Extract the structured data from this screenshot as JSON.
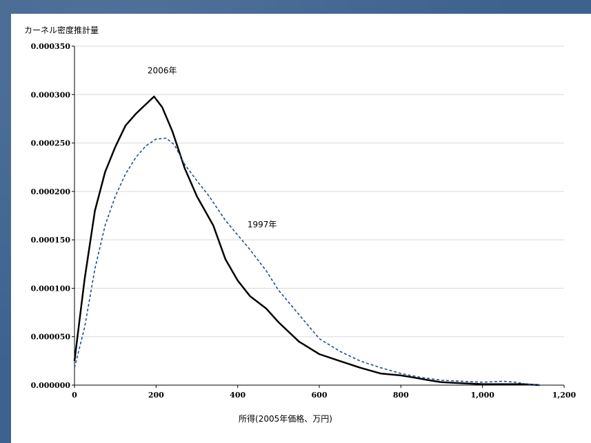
{
  "chart_data": {
    "type": "line",
    "title": "",
    "ylabel": "カーネル密度推計量",
    "xlabel": "所得(2005年価格、万円)",
    "xlim": [
      0,
      1200
    ],
    "ylim": [
      0,
      0.00035
    ],
    "x_ticks": [
      0,
      200,
      400,
      600,
      800,
      1000,
      1200
    ],
    "x_tick_labels": [
      "0",
      "200",
      "400",
      "600",
      "800",
      "1,000",
      "1,200"
    ],
    "y_ticks": [
      0,
      5e-05,
      0.0001,
      0.00015,
      0.0002,
      0.00025,
      0.0003,
      0.00035
    ],
    "y_tick_labels": [
      "0.000000",
      "0.000050",
      "0.000100",
      "0.000150",
      "0.000200",
      "0.000250",
      "0.000300",
      "0.000350"
    ],
    "grid": "horizontal",
    "series": [
      {
        "name": "2006年",
        "color": "#000000",
        "style": "solid",
        "x": [
          0,
          25,
          50,
          75,
          100,
          125,
          150,
          175,
          195,
          215,
          240,
          270,
          300,
          340,
          370,
          400,
          430,
          470,
          500,
          550,
          600,
          650,
          700,
          750,
          800,
          830,
          870,
          900,
          950,
          1000,
          1050,
          1100,
          1140
        ],
        "y": [
          2.5e-05,
          0.00011,
          0.00018,
          0.00022,
          0.000246,
          0.000268,
          0.00028,
          0.00029,
          0.000298,
          0.000287,
          0.000262,
          0.000224,
          0.000195,
          0.000165,
          0.00013,
          0.000108,
          9.2e-05,
          7.9e-05,
          6.5e-05,
          4.5e-05,
          3.2e-05,
          2.5e-05,
          1.8e-05,
          1.2e-05,
          1e-05,
          8e-06,
          5e-06,
          3e-06,
          2e-06,
          1e-06,
          1e-06,
          1e-06,
          0.0
        ]
      },
      {
        "name": "1997年",
        "color": "#1f4e8c",
        "style": "dashed",
        "x": [
          0,
          25,
          50,
          75,
          100,
          125,
          150,
          175,
          200,
          225,
          245,
          270,
          300,
          330,
          370,
          400,
          430,
          470,
          500,
          550,
          600,
          650,
          700,
          750,
          800,
          850,
          900,
          950,
          1000,
          1050,
          1080,
          1110,
          1140
        ],
        "y": [
          1.8e-05,
          6e-05,
          0.00012,
          0.000165,
          0.000195,
          0.000218,
          0.000235,
          0.000247,
          0.000254,
          0.000255,
          0.000248,
          0.000228,
          0.000211,
          0.000195,
          0.00017,
          0.000155,
          0.00014,
          0.000118,
          9.8e-05,
          7.3e-05,
          4.8e-05,
          3.5e-05,
          2.5e-05,
          1.8e-05,
          1.2e-05,
          8e-06,
          5e-06,
          4e-06,
          3e-06,
          4e-06,
          3e-06,
          1e-06,
          0.0
        ]
      }
    ],
    "annotations": [
      {
        "text": "2006年",
        "x": 215,
        "y": 0.000322
      },
      {
        "text": "1997年",
        "x": 460,
        "y": 0.000163
      }
    ]
  }
}
